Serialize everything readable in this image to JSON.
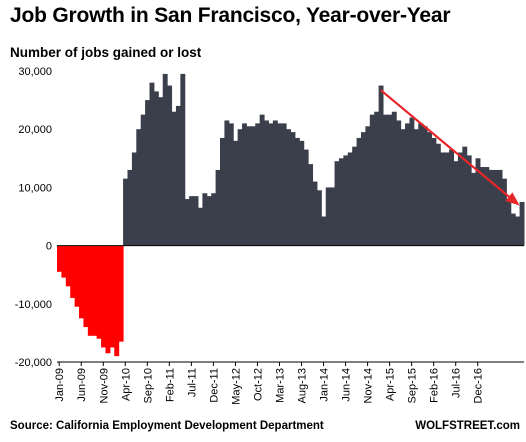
{
  "chart_data": {
    "type": "bar",
    "title": "Job Growth in San Francisco, Year-over-Year",
    "ylabel": "Number of jobs gained or lost",
    "ylim": [
      -20000,
      30000
    ],
    "y_ticks": [
      30000,
      20000,
      10000,
      0,
      -10000,
      -20000
    ],
    "y_tick_labels": [
      "30,000",
      "20,000",
      "10,000",
      "0",
      "-10,000",
      "-20,000"
    ],
    "x_tick_labels": [
      {
        "label": "Jan-09",
        "index": 0
      },
      {
        "label": "Jun-09",
        "index": 5
      },
      {
        "label": "Nov-09",
        "index": 10
      },
      {
        "label": "Apr-10",
        "index": 15
      },
      {
        "label": "Sep-10",
        "index": 20
      },
      {
        "label": "Feb-11",
        "index": 25
      },
      {
        "label": "Jul-11",
        "index": 30
      },
      {
        "label": "Dec-11",
        "index": 35
      },
      {
        "label": "May-12",
        "index": 40
      },
      {
        "label": "Oct-12",
        "index": 45
      },
      {
        "label": "Mar-13",
        "index": 50
      },
      {
        "label": "Aug-13",
        "index": 55
      },
      {
        "label": "Jan-14",
        "index": 60
      },
      {
        "label": "Jun-14",
        "index": 65
      },
      {
        "label": "Nov-14",
        "index": 70
      },
      {
        "label": "Apr-15",
        "index": 75
      },
      {
        "label": "Sep-15",
        "index": 80
      },
      {
        "label": "Feb-16",
        "index": 85
      },
      {
        "label": "Jul-16",
        "index": 90
      },
      {
        "label": "Dec-16",
        "index": 95
      }
    ],
    "values": [
      -4500,
      -5500,
      -7000,
      -9000,
      -10500,
      -12500,
      -14000,
      -15500,
      -15500,
      -16000,
      -17500,
      -18500,
      -17500,
      -19000,
      -16500,
      11500,
      13000,
      16000,
      20000,
      22500,
      25000,
      28000,
      26500,
      25500,
      29500,
      27500,
      23000,
      24000,
      29500,
      8000,
      8500,
      8500,
      6500,
      9000,
      8500,
      9000,
      13000,
      18500,
      21500,
      21000,
      18000,
      20000,
      21000,
      20500,
      20500,
      21000,
      22500,
      21500,
      21000,
      21500,
      21000,
      21000,
      20000,
      19500,
      18500,
      18000,
      16500,
      14000,
      11000,
      9500,
      5000,
      10000,
      10000,
      14500,
      15000,
      15500,
      16000,
      17000,
      18500,
      19500,
      20500,
      22500,
      23000,
      27500,
      22500,
      22500,
      23000,
      21500,
      20000,
      21000,
      22000,
      20000,
      21000,
      20500,
      19500,
      18500,
      17500,
      16000,
      16000,
      16500,
      14500,
      16000,
      17000,
      15500,
      12500,
      15000,
      13500,
      13500,
      13000,
      13000,
      13000,
      11500,
      8000,
      5500,
      5000,
      7500
    ],
    "negative_color": "#ff0000",
    "positive_color": "#3a3f4b",
    "trend_arrow_color": "#e8262a",
    "source": "Source: California Employment Development Department",
    "credit": "WOLFSTREET.com"
  }
}
